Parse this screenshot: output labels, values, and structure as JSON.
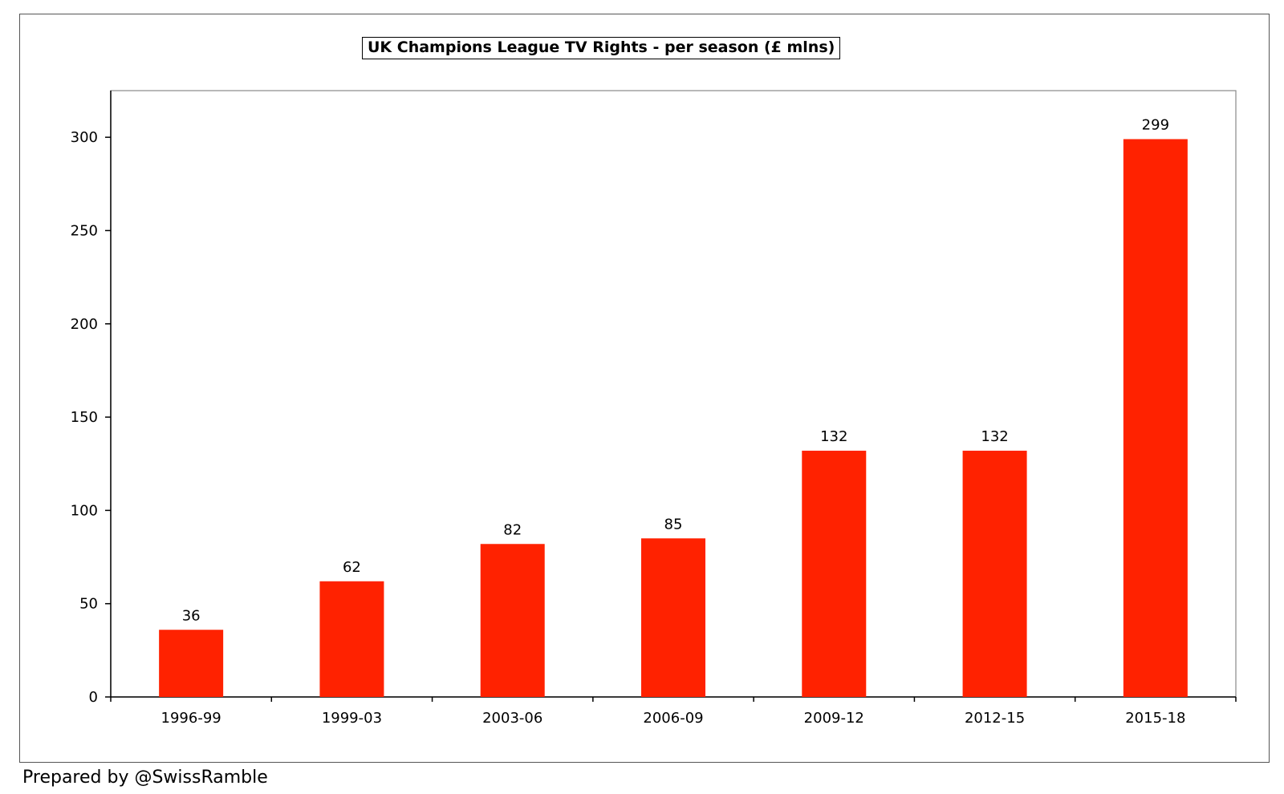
{
  "chart_data": {
    "type": "bar",
    "title": "UK Champions League TV Rights - per season (£ mlns)",
    "xlabel": "",
    "ylabel": "",
    "categories": [
      "1996-99",
      "1999-03",
      "2003-06",
      "2006-09",
      "2009-12",
      "2012-15",
      "2015-18"
    ],
    "values": [
      36,
      62,
      82,
      85,
      132,
      132,
      299
    ],
    "data_labels": [
      "36",
      "62",
      "82",
      "85",
      "132",
      "132",
      "299"
    ],
    "ylim": [
      0,
      325
    ],
    "yticks": [
      0,
      50,
      100,
      150,
      200,
      250,
      300
    ],
    "grid": false,
    "legend": "none",
    "bar_color": "#ff2200"
  },
  "footer": {
    "credit": "Prepared by @SwissRamble"
  }
}
